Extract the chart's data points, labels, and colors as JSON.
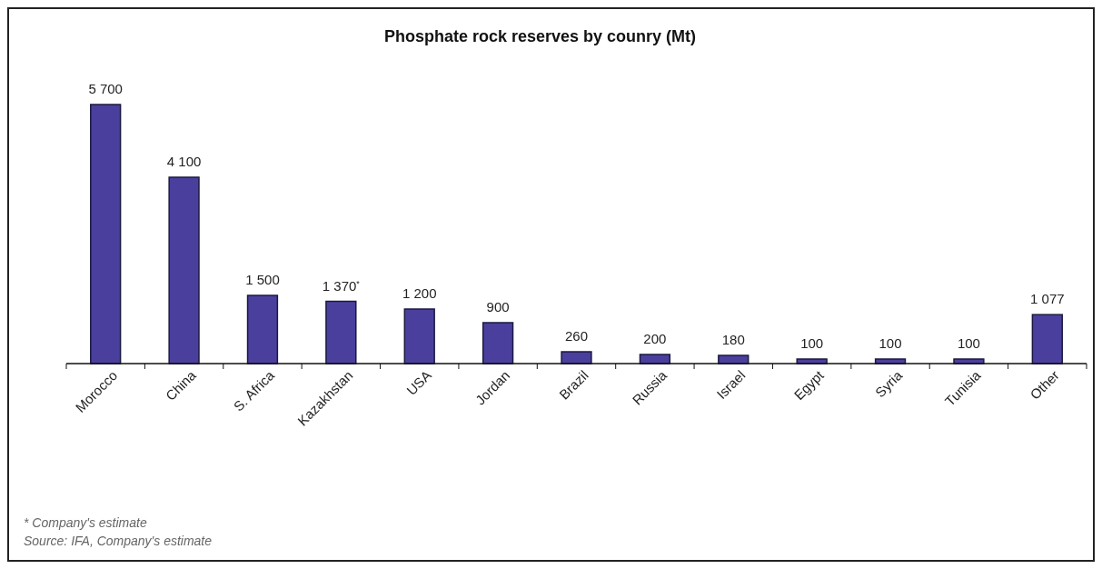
{
  "chart_data": {
    "type": "bar",
    "title": "Phosphate rock reserves by counry (Mt)",
    "categories": [
      "Morocco",
      "China",
      "S. Africa",
      "Kazakhstan",
      "USA",
      "Jordan",
      "Brazil",
      "Russia",
      "Israel",
      "Egypt",
      "Syria",
      "Tunisia",
      "Other"
    ],
    "values": [
      5700,
      4100,
      1500,
      1370,
      1200,
      900,
      260,
      200,
      180,
      100,
      100,
      100,
      1077
    ],
    "value_labels": [
      "5 700",
      "4 100",
      "1 500",
      "1 370$^{*}$",
      "1 200",
      "900",
      "260",
      "200",
      "180",
      "100",
      "100",
      "100",
      "1 077"
    ],
    "color": "#4b3f9e",
    "annotations": [
      "* Company's estimate",
      "Source: IFA, Company's estimate"
    ]
  }
}
